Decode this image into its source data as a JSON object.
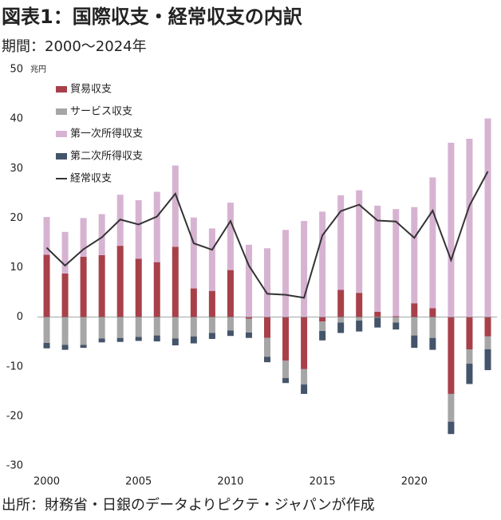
{
  "chart_data": {
    "type": "bar",
    "stacked": true,
    "title": "図表1：国際収支・経常収支の内訳",
    "subtitle": "期間：2000～2024年",
    "source": "出所：財務省・日銀のデータよりピクテ・ジャパンが作成",
    "y_unit": "兆円",
    "x": [
      2000,
      2001,
      2002,
      2003,
      2004,
      2005,
      2006,
      2007,
      2008,
      2009,
      2010,
      2011,
      2012,
      2013,
      2014,
      2015,
      2016,
      2017,
      2018,
      2019,
      2020,
      2021,
      2022,
      2023,
      2024
    ],
    "xlim": [
      1999.5,
      2024.5
    ],
    "xticks": [
      2000,
      2005,
      2010,
      2015,
      2020
    ],
    "ylim": [
      -30,
      50
    ],
    "yticks": [
      -30,
      -20,
      -10,
      0,
      10,
      20,
      30,
      40,
      50
    ],
    "grid": false,
    "legend": "upper left",
    "series": [
      {
        "name": "貿易収支",
        "color": "#a8404a",
        "type": "bar",
        "values": [
          12.6,
          8.8,
          12.2,
          12.5,
          14.4,
          11.8,
          11.1,
          14.2,
          5.8,
          5.3,
          9.5,
          -0.3,
          -4.2,
          -8.8,
          -10.5,
          -0.9,
          5.5,
          4.9,
          1.1,
          0.2,
          2.8,
          1.8,
          -15.5,
          -6.5,
          -3.9
        ]
      },
      {
        "name": "サービス収支",
        "color": "#a6a6a6",
        "type": "bar",
        "values": [
          -5.2,
          -5.6,
          -5.6,
          -4.3,
          -4.2,
          -4.0,
          -3.7,
          -4.3,
          -3.9,
          -3.2,
          -2.7,
          -2.8,
          -3.8,
          -3.5,
          -3.1,
          -1.9,
          -1.1,
          -0.7,
          -0.1,
          -1.1,
          -3.7,
          -4.2,
          -5.6,
          -2.9,
          -2.6
        ]
      },
      {
        "name": "第一次所得収支",
        "color": "#d7b3d2",
        "type": "bar",
        "values": [
          7.6,
          8.4,
          7.8,
          8.3,
          10.3,
          11.8,
          14.2,
          16.4,
          14.3,
          12.6,
          13.6,
          14.6,
          13.9,
          17.6,
          19.4,
          21.3,
          19.1,
          20.7,
          21.4,
          21.6,
          19.4,
          26.4,
          35.2,
          36.0,
          40.1
        ]
      },
      {
        "name": "第二次所得収支",
        "color": "#44546a",
        "type": "bar",
        "values": [
          -1.1,
          -1.0,
          -0.6,
          -0.8,
          -0.8,
          -0.8,
          -1.2,
          -1.4,
          -1.4,
          -1.2,
          -1.1,
          -1.1,
          -1.1,
          -1.0,
          -1.9,
          -1.9,
          -2.1,
          -2.2,
          -2.0,
          -1.4,
          -2.5,
          -2.4,
          -2.5,
          -4.1,
          -4.2
        ]
      },
      {
        "name": "経常収支",
        "color": "#333333",
        "type": "line",
        "values": [
          14.0,
          10.4,
          13.7,
          16.1,
          19.7,
          18.7,
          20.3,
          24.9,
          14.9,
          13.6,
          19.4,
          10.4,
          4.7,
          4.5,
          3.9,
          16.5,
          21.4,
          22.7,
          19.5,
          19.3,
          16.0,
          21.5,
          11.5,
          22.5,
          29.4
        ]
      }
    ]
  }
}
